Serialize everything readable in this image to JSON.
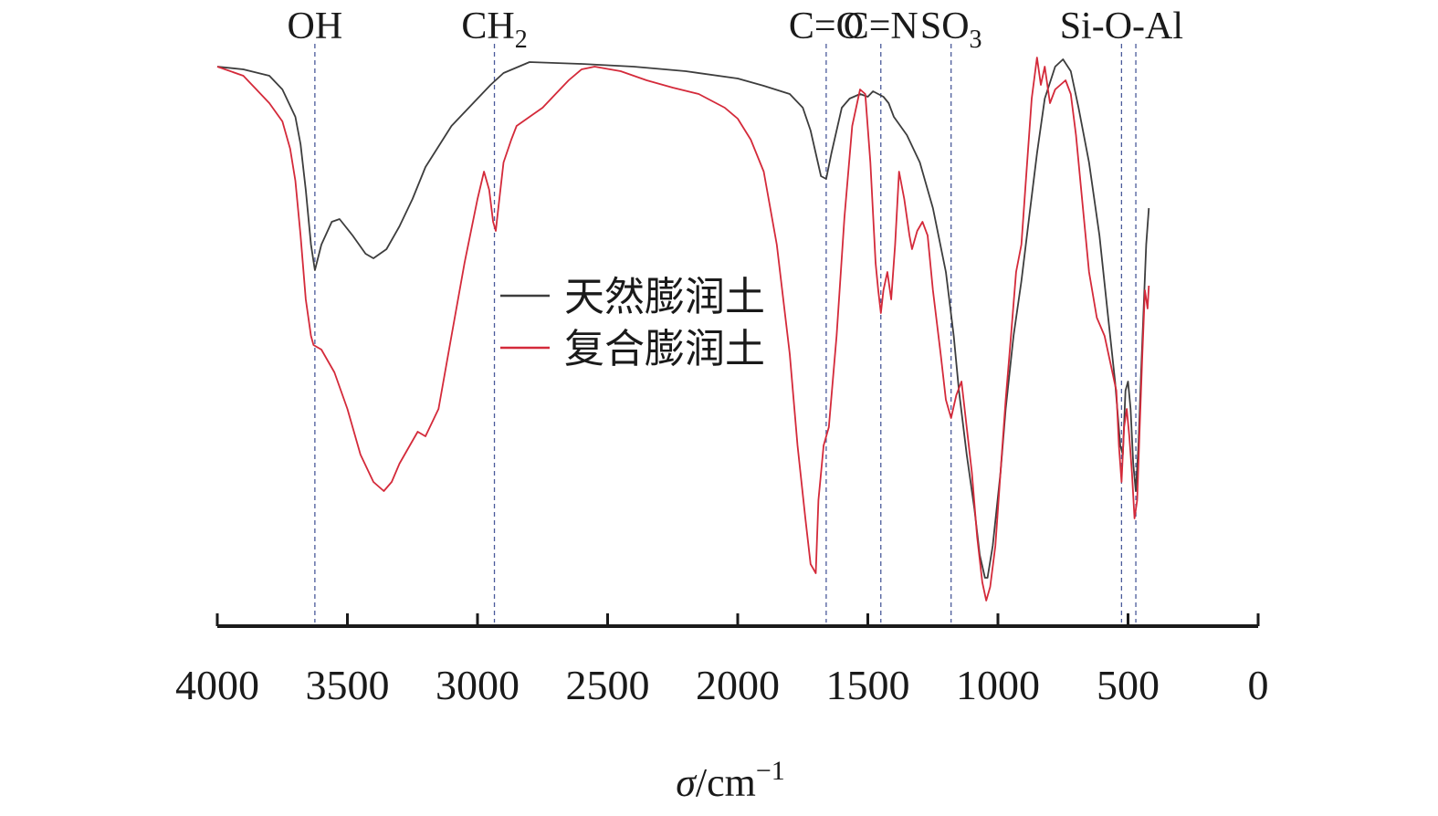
{
  "chart_data": {
    "type": "line",
    "title": "",
    "xlabel": {
      "symbol": "σ",
      "unit": "/cm",
      "exponent": "−1"
    },
    "ylabel": "",
    "xlim": [
      4000,
      0
    ],
    "x_ticks": [
      4000,
      3500,
      3000,
      2500,
      2000,
      1500,
      1000,
      500,
      0
    ],
    "y_axis_shown": false,
    "grid": false,
    "legend_position": "center",
    "colors": {
      "series_1": "#3d3d3d",
      "series_2": "#d42a3a",
      "annotation_line": "#4a5a9a",
      "axis": "#1a1a1a"
    },
    "annotations": [
      {
        "label": "OH",
        "sub": "",
        "x": 3625
      },
      {
        "label": "CH",
        "sub": "2",
        "x": 2935
      },
      {
        "label": "C=O",
        "sub": "",
        "x": 1660
      },
      {
        "label": "C=N",
        "sub": "",
        "x": 1450
      },
      {
        "label": "SO",
        "sub": "3",
        "x": 1180
      },
      {
        "label": "Si-O-Al",
        "sub": "",
        "x": 525
      },
      {
        "label": "",
        "sub": "",
        "x": 470
      }
    ],
    "series": [
      {
        "name": "天然膨润土",
        "points": [
          [
            4000,
            5
          ],
          [
            3900,
            8
          ],
          [
            3800,
            15
          ],
          [
            3750,
            30
          ],
          [
            3700,
            60
          ],
          [
            3680,
            90
          ],
          [
            3660,
            140
          ],
          [
            3640,
            200
          ],
          [
            3625,
            228
          ],
          [
            3600,
            200
          ],
          [
            3560,
            175
          ],
          [
            3530,
            172
          ],
          [
            3480,
            190
          ],
          [
            3430,
            210
          ],
          [
            3400,
            215
          ],
          [
            3350,
            205
          ],
          [
            3300,
            180
          ],
          [
            3250,
            150
          ],
          [
            3200,
            115
          ],
          [
            3100,
            70
          ],
          [
            3000,
            40
          ],
          [
            2950,
            25
          ],
          [
            2900,
            12
          ],
          [
            2800,
            0
          ],
          [
            2600,
            2
          ],
          [
            2400,
            5
          ],
          [
            2200,
            10
          ],
          [
            2000,
            18
          ],
          [
            1900,
            26
          ],
          [
            1800,
            35
          ],
          [
            1750,
            50
          ],
          [
            1720,
            75
          ],
          [
            1700,
            100
          ],
          [
            1680,
            125
          ],
          [
            1660,
            128
          ],
          [
            1640,
            100
          ],
          [
            1600,
            50
          ],
          [
            1570,
            40
          ],
          [
            1530,
            35
          ],
          [
            1500,
            38
          ],
          [
            1480,
            32
          ],
          [
            1460,
            35
          ],
          [
            1440,
            38
          ],
          [
            1420,
            45
          ],
          [
            1400,
            60
          ],
          [
            1350,
            80
          ],
          [
            1300,
            110
          ],
          [
            1250,
            160
          ],
          [
            1200,
            230
          ],
          [
            1170,
            300
          ],
          [
            1150,
            360
          ],
          [
            1120,
            430
          ],
          [
            1090,
            490
          ],
          [
            1070,
            540
          ],
          [
            1050,
            565
          ],
          [
            1040,
            565
          ],
          [
            1020,
            530
          ],
          [
            990,
            450
          ],
          [
            970,
            380
          ],
          [
            940,
            300
          ],
          [
            910,
            240
          ],
          [
            880,
            170
          ],
          [
            850,
            100
          ],
          [
            820,
            40
          ],
          [
            780,
            5
          ],
          [
            750,
            -3
          ],
          [
            720,
            10
          ],
          [
            690,
            50
          ],
          [
            650,
            110
          ],
          [
            610,
            190
          ],
          [
            580,
            270
          ],
          [
            550,
            350
          ],
          [
            530,
            420
          ],
          [
            520,
            430
          ],
          [
            510,
            360
          ],
          [
            500,
            350
          ],
          [
            490,
            380
          ],
          [
            480,
            440
          ],
          [
            470,
            470
          ],
          [
            460,
            420
          ],
          [
            450,
            340
          ],
          [
            440,
            270
          ],
          [
            430,
            200
          ],
          [
            420,
            160
          ]
        ]
      },
      {
        "name": "复合膨润土",
        "points": [
          [
            4000,
            5
          ],
          [
            3900,
            15
          ],
          [
            3850,
            30
          ],
          [
            3800,
            45
          ],
          [
            3750,
            65
          ],
          [
            3720,
            95
          ],
          [
            3700,
            130
          ],
          [
            3680,
            190
          ],
          [
            3660,
            260
          ],
          [
            3640,
            300
          ],
          [
            3630,
            310
          ],
          [
            3600,
            315
          ],
          [
            3550,
            340
          ],
          [
            3500,
            380
          ],
          [
            3450,
            430
          ],
          [
            3400,
            460
          ],
          [
            3360,
            470
          ],
          [
            3330,
            460
          ],
          [
            3300,
            440
          ],
          [
            3260,
            420
          ],
          [
            3230,
            405
          ],
          [
            3200,
            410
          ],
          [
            3150,
            380
          ],
          [
            3100,
            300
          ],
          [
            3050,
            220
          ],
          [
            3000,
            150
          ],
          [
            2975,
            120
          ],
          [
            2955,
            140
          ],
          [
            2940,
            175
          ],
          [
            2930,
            185
          ],
          [
            2920,
            160
          ],
          [
            2900,
            110
          ],
          [
            2870,
            85
          ],
          [
            2850,
            70
          ],
          [
            2800,
            60
          ],
          [
            2750,
            50
          ],
          [
            2700,
            35
          ],
          [
            2650,
            20
          ],
          [
            2600,
            8
          ],
          [
            2550,
            5
          ],
          [
            2450,
            10
          ],
          [
            2350,
            20
          ],
          [
            2250,
            28
          ],
          [
            2150,
            35
          ],
          [
            2050,
            50
          ],
          [
            2000,
            62
          ],
          [
            1950,
            85
          ],
          [
            1900,
            120
          ],
          [
            1850,
            200
          ],
          [
            1800,
            320
          ],
          [
            1770,
            420
          ],
          [
            1740,
            500
          ],
          [
            1720,
            550
          ],
          [
            1700,
            560
          ],
          [
            1690,
            480
          ],
          [
            1670,
            420
          ],
          [
            1650,
            400
          ],
          [
            1620,
            300
          ],
          [
            1590,
            170
          ],
          [
            1560,
            70
          ],
          [
            1530,
            30
          ],
          [
            1510,
            35
          ],
          [
            1490,
            110
          ],
          [
            1470,
            220
          ],
          [
            1460,
            250
          ],
          [
            1450,
            275
          ],
          [
            1440,
            250
          ],
          [
            1425,
            230
          ],
          [
            1410,
            260
          ],
          [
            1395,
            200
          ],
          [
            1380,
            120
          ],
          [
            1360,
            150
          ],
          [
            1340,
            190
          ],
          [
            1330,
            205
          ],
          [
            1310,
            185
          ],
          [
            1290,
            175
          ],
          [
            1270,
            190
          ],
          [
            1250,
            250
          ],
          [
            1220,
            320
          ],
          [
            1200,
            370
          ],
          [
            1180,
            390
          ],
          [
            1160,
            365
          ],
          [
            1140,
            350
          ],
          [
            1120,
            400
          ],
          [
            1100,
            450
          ],
          [
            1080,
            520
          ],
          [
            1060,
            570
          ],
          [
            1045,
            590
          ],
          [
            1030,
            575
          ],
          [
            1010,
            530
          ],
          [
            990,
            450
          ],
          [
            970,
            370
          ],
          [
            950,
            300
          ],
          [
            930,
            230
          ],
          [
            910,
            200
          ],
          [
            890,
            120
          ],
          [
            870,
            40
          ],
          [
            850,
            -5
          ],
          [
            835,
            25
          ],
          [
            820,
            5
          ],
          [
            800,
            45
          ],
          [
            780,
            30
          ],
          [
            760,
            25
          ],
          [
            740,
            20
          ],
          [
            720,
            35
          ],
          [
            700,
            80
          ],
          [
            680,
            140
          ],
          [
            650,
            230
          ],
          [
            620,
            280
          ],
          [
            590,
            300
          ],
          [
            560,
            340
          ],
          [
            545,
            360
          ],
          [
            535,
            420
          ],
          [
            525,
            460
          ],
          [
            515,
            400
          ],
          [
            505,
            380
          ],
          [
            495,
            410
          ],
          [
            485,
            450
          ],
          [
            475,
            500
          ],
          [
            465,
            480
          ],
          [
            455,
            400
          ],
          [
            445,
            320
          ],
          [
            435,
            250
          ],
          [
            425,
            270
          ],
          [
            420,
            245
          ]
        ]
      }
    ]
  }
}
